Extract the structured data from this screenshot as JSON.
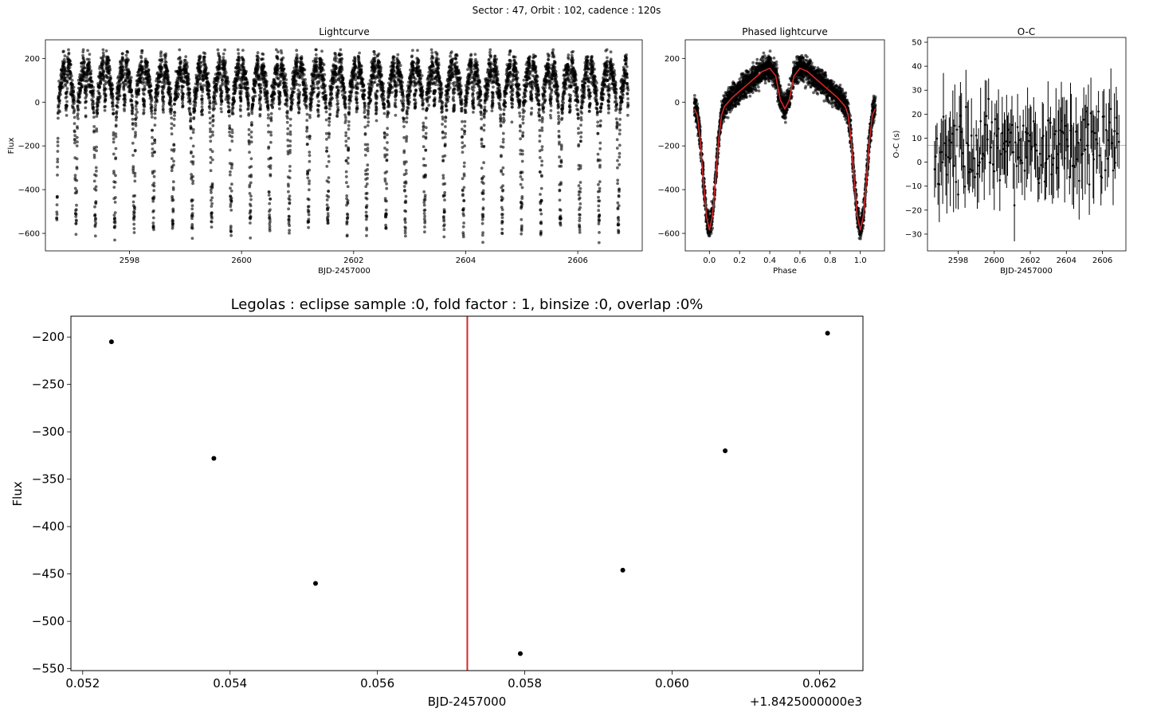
{
  "figure": {
    "suptitle": "Sector : 47, Orbit : 102, cadence : 120s"
  },
  "colors": {
    "marker": "#000000",
    "model": "#d62728",
    "mean_line": "#f08080",
    "vline": "#d62728"
  },
  "chart_data": [
    {
      "id": "lightcurve",
      "type": "scatter",
      "title": "Lightcurve",
      "xlabel": "BJD-2457000",
      "ylabel": "Flux",
      "xlim": [
        2596.5,
        2607.15
      ],
      "ylim": [
        -680,
        285
      ],
      "xticks": [
        2598,
        2600,
        2602,
        2604,
        2606
      ],
      "yticks": [
        200,
        0,
        -200,
        -400,
        -600
      ],
      "ytick_labels": [
        "200",
        "0",
        "−200",
        "−400",
        "−600"
      ],
      "time_span": [
        2596.7,
        2606.9
      ],
      "period": 0.3457,
      "eclipse_center_phase": 0.0,
      "secondary_phase": 0.5,
      "out_of_eclipse_flux": [
        -40,
        200
      ],
      "eclipse_depth": -630,
      "n_points": 7000
    },
    {
      "id": "phased",
      "type": "scatter",
      "title": "Phased lightcurve",
      "xlabel": "Phase",
      "ylabel": "",
      "xlim": [
        -0.16,
        1.16
      ],
      "ylim": [
        -680,
        285
      ],
      "xticks": [
        0.0,
        0.2,
        0.4,
        0.6,
        0.8,
        1.0
      ],
      "xtick_labels": [
        "0.0",
        "0.2",
        "0.4",
        "0.6",
        "0.8",
        "1.0"
      ],
      "yticks": [
        200,
        0,
        -200,
        -400,
        -600
      ],
      "ytick_labels": [
        "200",
        "0",
        "−200",
        "−400",
        "−600"
      ],
      "model_curve": {
        "phase": [
          -0.1,
          -0.08,
          -0.06,
          -0.04,
          -0.02,
          0.0,
          0.02,
          0.04,
          0.06,
          0.08,
          0.1,
          0.15,
          0.2,
          0.25,
          0.3,
          0.35,
          0.4,
          0.44,
          0.47,
          0.5,
          0.53,
          0.56,
          0.6,
          0.65,
          0.7,
          0.75,
          0.8,
          0.85,
          0.9,
          0.92,
          0.94,
          0.96,
          0.98,
          1.0,
          1.02,
          1.04,
          1.06,
          1.08,
          1.1
        ],
        "flux": [
          -30,
          -60,
          -180,
          -360,
          -520,
          -585,
          -520,
          -360,
          -180,
          -60,
          -20,
          20,
          50,
          80,
          110,
          140,
          155,
          120,
          10,
          -30,
          10,
          120,
          155,
          140,
          110,
          80,
          50,
          20,
          -20,
          -60,
          -180,
          -360,
          -520,
          -585,
          -520,
          -360,
          -180,
          -60,
          -30
        ]
      }
    },
    {
      "id": "oc",
      "type": "scatter",
      "title": "O-C",
      "xlabel": "BJD-2457000",
      "ylabel": "O-C (s)",
      "xlim": [
        2596.3,
        2607.3
      ],
      "ylim": [
        -37,
        52
      ],
      "xticks": [
        2598,
        2600,
        2602,
        2604,
        2606
      ],
      "yticks": [
        50,
        40,
        30,
        20,
        10,
        0,
        -10,
        -20,
        -30
      ],
      "ytick_labels": [
        "50",
        "40",
        "30",
        "20",
        "10",
        "0",
        "−10",
        "−20",
        "−30"
      ],
      "mean_line": 7,
      "n_points": 165
    },
    {
      "id": "legolas",
      "type": "scatter",
      "title": "Legolas : eclipse sample :0, fold factor : 1, binsize :0, overlap :0%",
      "xlabel": "BJD-2457000",
      "ylabel": "Flux",
      "offset_text": "+1.8425000000e3",
      "xlim": [
        0.05184,
        0.06259
      ],
      "ylim": [
        -552,
        -178
      ],
      "xticks": [
        0.052,
        0.054,
        0.056,
        0.058,
        0.06,
        0.062
      ],
      "xtick_labels": [
        "0.052",
        "0.054",
        "0.056",
        "0.058",
        "0.060",
        "0.062"
      ],
      "yticks": [
        -200,
        -250,
        -300,
        -350,
        -400,
        -450,
        -500,
        -550
      ],
      "ytick_labels": [
        "−200",
        "−250",
        "−300",
        "−350",
        "−400",
        "−450",
        "−500",
        "−550"
      ],
      "x": [
        0.05239,
        0.05378,
        0.05516,
        0.05794,
        0.05933,
        0.06072,
        0.06211
      ],
      "y": [
        -205,
        -328,
        -460,
        -534,
        -446,
        -320,
        -196
      ],
      "vline_x": 0.05722
    }
  ]
}
